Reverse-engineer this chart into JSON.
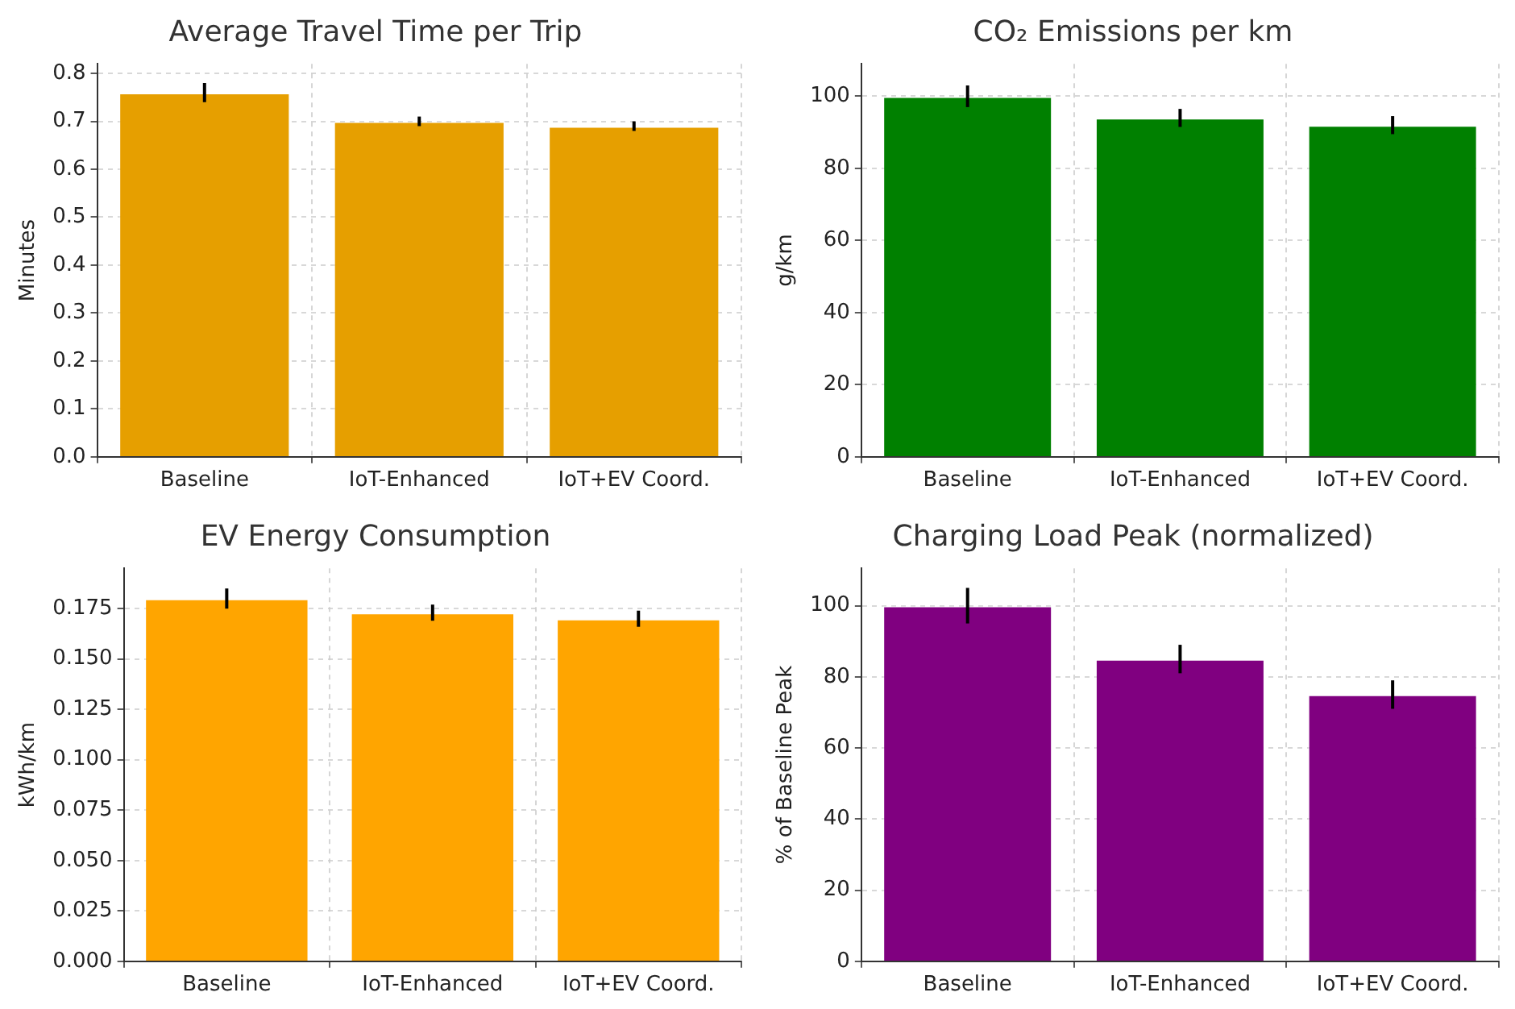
{
  "chart_data": [
    {
      "type": "bar",
      "title": "Average Travel Time per Trip",
      "ylabel": "Minutes",
      "categories": [
        "Baseline",
        "IoT-Enhanced",
        "IoT+EV Coord."
      ],
      "values": [
        0.76,
        0.7,
        0.69
      ],
      "errors": [
        0.02,
        0.01,
        0.01
      ],
      "color": "#e69f00",
      "ylim": [
        0,
        0.82
      ],
      "yticks": [
        {
          "value": 0,
          "label": "0.0"
        },
        0.1,
        0.2,
        0.3,
        0.4,
        0.5,
        0.6,
        0.7,
        0.8
      ],
      "grid": true
    },
    {
      "type": "bar",
      "title": "CO₂ Emissions per km",
      "ylabel": "g/km",
      "categories": [
        "Baseline",
        "IoT-Enhanced",
        "IoT+EV Coord."
      ],
      "values": [
        100,
        94,
        92
      ],
      "errors": [
        3,
        2.5,
        2.5
      ],
      "color": "#008000",
      "ylim": [
        0,
        109
      ],
      "yticks": [
        0,
        20,
        40,
        60,
        80,
        100
      ],
      "grid": true
    },
    {
      "type": "bar",
      "title": "EV Energy Consumption",
      "ylabel": "kWh/km",
      "categories": [
        "Baseline",
        "IoT-Enhanced",
        "IoT+EV Coord."
      ],
      "values": [
        0.18,
        0.173,
        0.17
      ],
      "errors": [
        0.005,
        0.004,
        0.004
      ],
      "color": "#ffa500",
      "ylim": [
        0,
        0.195
      ],
      "yticks": [
        {
          "value": 0,
          "label": "0.000"
        },
        {
          "value": 0.025,
          "label": "0.025"
        },
        {
          "value": 0.05,
          "label": "0.050"
        },
        {
          "value": 0.075,
          "label": "0.075"
        },
        {
          "value": 0.1,
          "label": "0.100"
        },
        {
          "value": 0.125,
          "label": "0.125"
        },
        {
          "value": 0.15,
          "label": "0.150"
        },
        {
          "value": 0.175,
          "label": "0.175"
        }
      ],
      "grid": true
    },
    {
      "type": "bar",
      "title": "Charging Load Peak (normalized)",
      "ylabel": "% of Baseline Peak",
      "categories": [
        "Baseline",
        "IoT-Enhanced",
        "IoT+EV Coord."
      ],
      "values": [
        100,
        85,
        75
      ],
      "errors": [
        5,
        4,
        4
      ],
      "color": "#800080",
      "ylim": [
        0,
        110.5
      ],
      "yticks": [
        0,
        20,
        40,
        60,
        80,
        100
      ],
      "grid": true
    }
  ]
}
